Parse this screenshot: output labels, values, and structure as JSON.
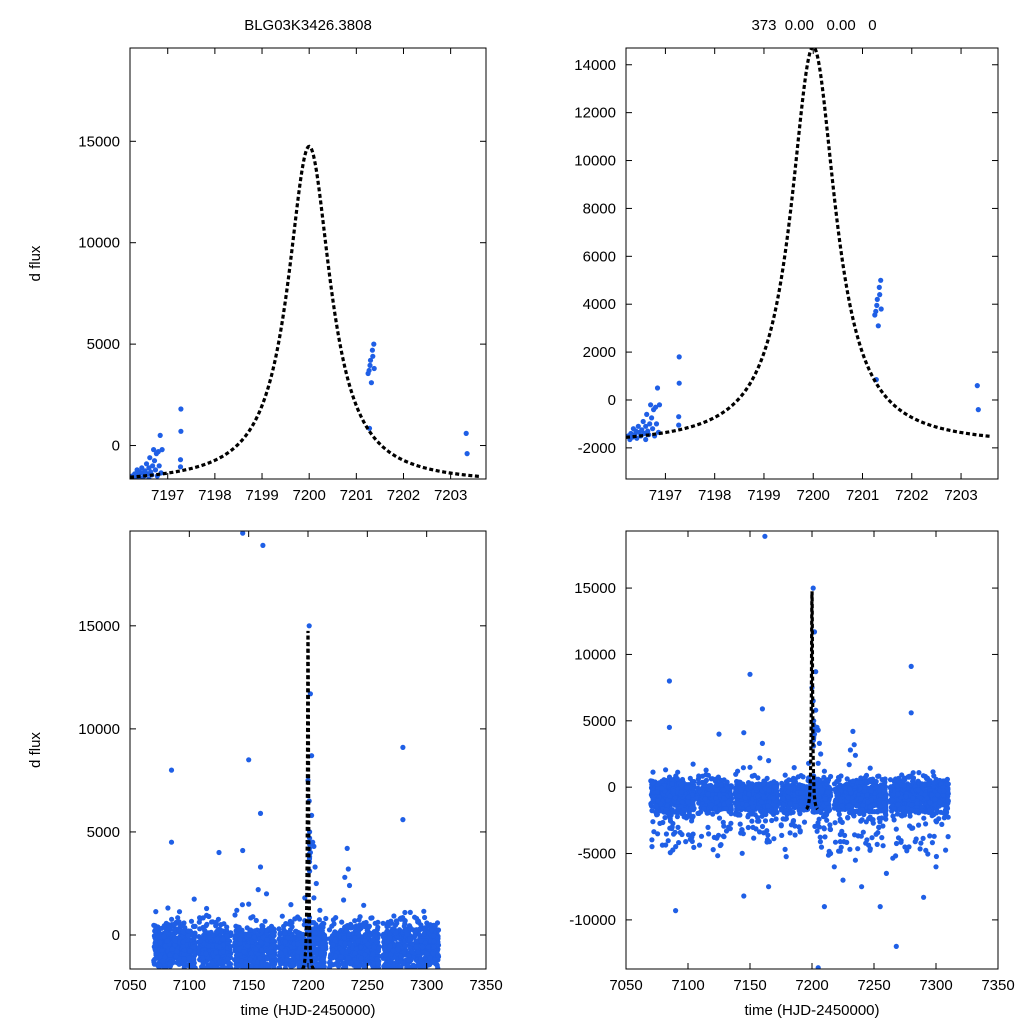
{
  "figure": {
    "title_left": "BLG03K3426.3808",
    "title_right": "373  0.00   0.00   0"
  },
  "style": {
    "point_color": "#1f5fe6",
    "model_color": "#000000",
    "axes_color": "#000000"
  },
  "chart_data": [
    {
      "panel": "top-left",
      "type": "scatter",
      "title": "BLG03K3426.3808",
      "xlabel": "",
      "ylabel": "d flux",
      "xlim": [
        7196.2,
        7203.75
      ],
      "ylim": [
        -1650,
        19600
      ],
      "xticks": [
        7197,
        7198,
        7199,
        7200,
        7201,
        7202,
        7203
      ],
      "yticks": [
        0,
        5000,
        10000,
        15000
      ],
      "grid": false,
      "points_key": "zoom",
      "model": {
        "t0": 7200.0,
        "peak": 14750,
        "base": -1900,
        "tau": 0.55,
        "x_range": [
          7196.2,
          7203.62
        ]
      }
    },
    {
      "panel": "top-right",
      "type": "scatter",
      "title": "373  0.00   0.00   0",
      "xlabel": "",
      "ylabel": "",
      "xlim": [
        7196.2,
        7203.75
      ],
      "ylim": [
        -3300,
        14700
      ],
      "xticks": [
        7197,
        7198,
        7199,
        7200,
        7201,
        7202,
        7203
      ],
      "yticks": [
        -2000,
        0,
        2000,
        4000,
        6000,
        8000,
        10000,
        12000,
        14000
      ],
      "grid": false,
      "points_key": "zoom",
      "model": {
        "t0": 7200.0,
        "peak": 14750,
        "base": -1900,
        "tau": 0.55,
        "x_range": [
          7196.2,
          7203.62
        ]
      }
    },
    {
      "panel": "bottom-left",
      "type": "scatter",
      "title": "",
      "xlabel": "time (HJD-2450000)",
      "ylabel": "d flux",
      "xlim": [
        7050,
        7350
      ],
      "ylim": [
        -1650,
        19600
      ],
      "xticks": [
        7050,
        7100,
        7150,
        7200,
        7250,
        7300,
        7350
      ],
      "yticks": [
        0,
        5000,
        10000,
        15000
      ],
      "grid": false,
      "points_key": "full",
      "model": {
        "t0": 7200.0,
        "peak": 14750,
        "base": -1900,
        "tau": 0.55,
        "x_range": [
          7195.5,
          7204.5
        ]
      }
    },
    {
      "panel": "bottom-right",
      "type": "scatter",
      "title": "",
      "xlabel": "time (HJD-2450000)",
      "ylabel": "",
      "xlim": [
        7050,
        7350
      ],
      "ylim": [
        -13700,
        19300
      ],
      "xticks": [
        7050,
        7100,
        7150,
        7200,
        7250,
        7300,
        7350
      ],
      "yticks": [
        -10000,
        -5000,
        0,
        5000,
        10000,
        15000
      ],
      "grid": false,
      "points_key": "full",
      "model": {
        "t0": 7200.0,
        "peak": 14750,
        "base": -1900,
        "tau": 0.55,
        "x_range": [
          7195.5,
          7204.5
        ]
      }
    }
  ],
  "points": {
    "zoom": [
      [
        7196.25,
        -1500
      ],
      [
        7196.28,
        -1650
      ],
      [
        7196.3,
        -1400
      ],
      [
        7196.33,
        -1550
      ],
      [
        7196.35,
        -1200
      ],
      [
        7196.38,
        -1450
      ],
      [
        7196.4,
        -1300
      ],
      [
        7196.42,
        -1600
      ],
      [
        7196.45,
        -1100
      ],
      [
        7196.47,
        -1350
      ],
      [
        7196.5,
        -1500
      ],
      [
        7196.52,
        -1250
      ],
      [
        7196.55,
        -900
      ],
      [
        7196.57,
        -1400
      ],
      [
        7196.6,
        -1100
      ],
      [
        7196.62,
        -600
      ],
      [
        7196.64,
        -1300
      ],
      [
        7196.66,
        -1450
      ],
      [
        7196.68,
        -1000
      ],
      [
        7196.7,
        -200
      ],
      [
        7196.72,
        -750
      ],
      [
        7196.74,
        -1200
      ],
      [
        7196.76,
        -400
      ],
      [
        7196.78,
        -1500
      ],
      [
        7196.8,
        -300
      ],
      [
        7196.82,
        -1000
      ],
      [
        7196.84,
        500
      ],
      [
        7196.86,
        -1350
      ],
      [
        7196.88,
        -200
      ],
      [
        7196.6,
        -1650
      ],
      [
        7197.27,
        -1050
      ],
      [
        7197.27,
        -700
      ],
      [
        7197.28,
        700
      ],
      [
        7197.28,
        1800
      ],
      [
        7201.25,
        3550
      ],
      [
        7201.27,
        3700
      ],
      [
        7201.29,
        3950
      ],
      [
        7201.3,
        4200
      ],
      [
        7201.32,
        3100
      ],
      [
        7201.34,
        4700
      ],
      [
        7201.35,
        4400
      ],
      [
        7201.37,
        5000
      ],
      [
        7201.38,
        3800
      ],
      [
        7201.28,
        850
      ],
      [
        7203.33,
        600
      ],
      [
        7203.35,
        -400
      ]
    ],
    "full": [
      [
        7085,
        8000
      ],
      [
        7085,
        4500
      ],
      [
        7125,
        4000
      ],
      [
        7145,
        4100
      ],
      [
        7150,
        8500
      ],
      [
        7160,
        5900
      ],
      [
        7280,
        9100
      ],
      [
        7280,
        5600
      ],
      [
        7145,
        19500
      ],
      [
        7162,
        18900
      ],
      [
        7201,
        15000
      ],
      [
        7202,
        11700
      ],
      [
        7203,
        8700
      ],
      [
        7200,
        7500
      ],
      [
        7201,
        6500
      ],
      [
        7203,
        5800
      ],
      [
        7204,
        4500
      ],
      [
        7202,
        4000
      ],
      [
        7205,
        4300
      ],
      [
        7206,
        3300
      ],
      [
        7207,
        2500
      ],
      [
        7205,
        1800
      ],
      [
        7233,
        4200
      ],
      [
        7234,
        3200
      ],
      [
        7235,
        2400
      ],
      [
        7230,
        1700
      ],
      [
        7160,
        3300
      ],
      [
        7158,
        2200
      ],
      [
        7150,
        1500
      ],
      [
        7165,
        2000
      ],
      [
        7140,
        1200
      ],
      [
        7210,
        1200
      ],
      [
        7231,
        2800
      ],
      [
        7215,
        -5000
      ],
      [
        7218,
        -6000
      ],
      [
        7225,
        -7000
      ],
      [
        7240,
        -7500
      ],
      [
        7255,
        -9000
      ],
      [
        7268,
        -12000
      ],
      [
        7210,
        -9000
      ],
      [
        7145,
        -8200
      ],
      [
        7090,
        -9300
      ],
      [
        7165,
        -7500
      ],
      [
        7260,
        -6500
      ],
      [
        7290,
        -8300
      ],
      [
        7300,
        -6000
      ],
      [
        7235,
        -5500
      ],
      [
        7205,
        -13600
      ]
    ]
  }
}
